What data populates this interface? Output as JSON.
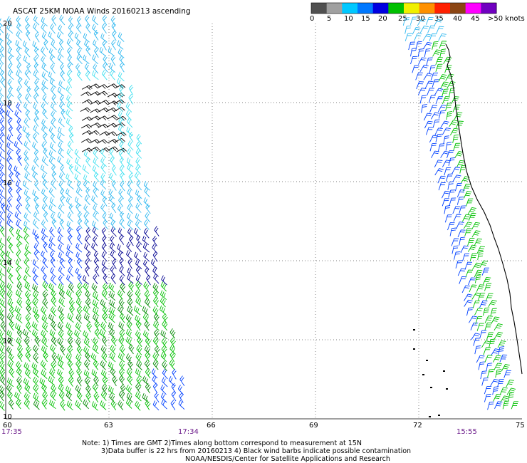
{
  "title": "ASCAT 25KM NOAA Winds 20160213 ascending",
  "colorbar": {
    "labels": [
      "0",
      "5",
      "10",
      "15",
      "20",
      "25",
      "30",
      "35",
      "40",
      "45",
      ">50 knots"
    ],
    "colors": [
      "#505050",
      "#a0a0a0",
      "#00c8ff",
      "#0078ff",
      "#0000e0",
      "#00c000",
      "#f0f000",
      "#ff9000",
      "#ff2000",
      "#8b4513",
      "#ff00ff",
      "#7000c0"
    ]
  },
  "axes": {
    "x_ticks": [
      "60",
      "63",
      "66",
      "69",
      "72",
      "75"
    ],
    "y_ticks": [
      "20",
      "18",
      "16",
      "14",
      "12",
      "10"
    ]
  },
  "times": [
    "17:35",
    "17:34",
    "15:55"
  ],
  "notes": {
    "line1": "Note: 1) Times are GMT 2)Times along bottom correspond to measurement at 15N",
    "line2": "3)Data buffer is 22 hrs from 20160213 4) Black wind barbs indicate possible contamination",
    "line3": "NOAA/NESDIS/Center for Satellite Applications and Research"
  },
  "barb_colors": {
    "light_blue": "#30b8f0",
    "cyan": "#40e0f0",
    "blue": "#0040ff",
    "navy": "#000090",
    "green": "#00c000",
    "dark_green": "#008800",
    "black": "#000000"
  }
}
